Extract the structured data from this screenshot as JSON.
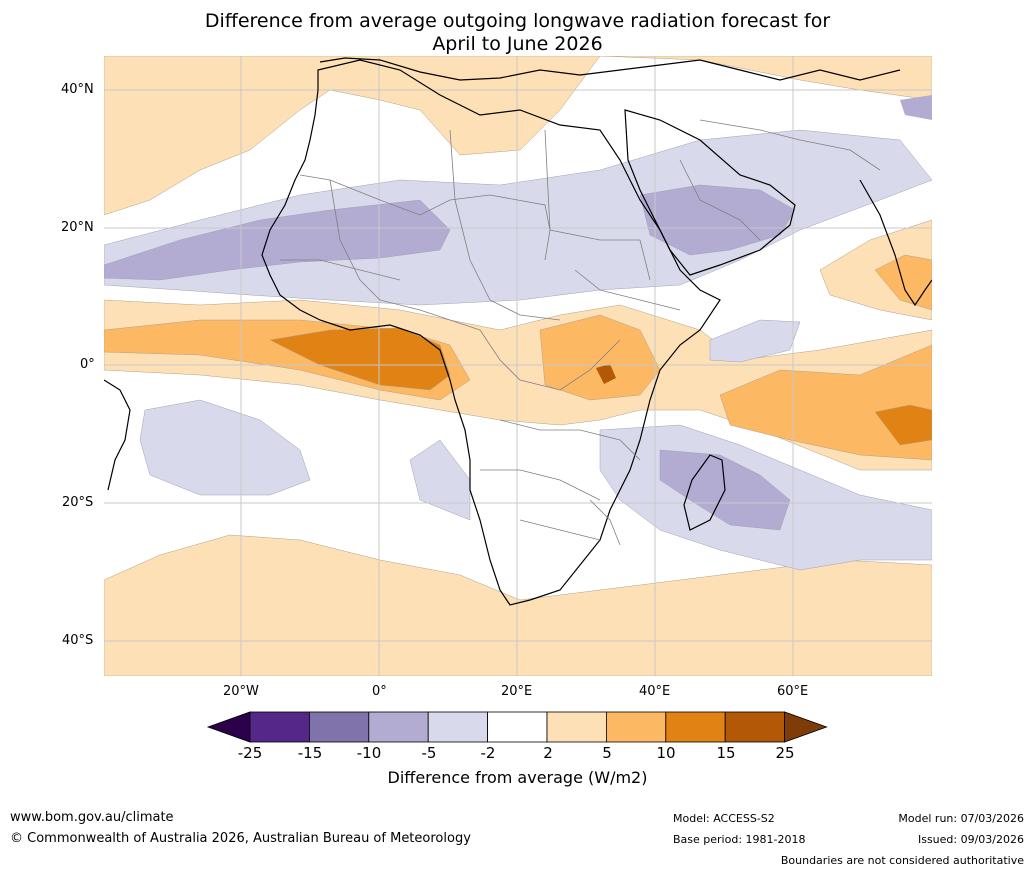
{
  "title_line1": "Difference from average outgoing longwave radiation forecast for",
  "title_line2": "April to June 2026",
  "lat_labels": [
    "40°N",
    "20°N",
    "0°",
    "20°S",
    "40°S"
  ],
  "lon_labels": [
    "20°W",
    "0°",
    "20°E",
    "40°E",
    "60°E"
  ],
  "legend": {
    "ticks": [
      "-25",
      "-15",
      "-10",
      "-5",
      "-2",
      "2",
      "5",
      "10",
      "15",
      "25"
    ],
    "colors": [
      "#2d004b",
      "#542788",
      "#8073ac",
      "#b2abd2",
      "#d8daeb",
      "#ffffff",
      "#fee0b6",
      "#fdb863",
      "#e08214",
      "#b35806",
      "#7f3b08"
    ],
    "title": "Difference from average (W/m2)"
  },
  "footer": {
    "url": "www.bom.gov.au/climate",
    "copyright": "© Commonwealth of Australia 2026, Australian Bureau of Meteorology",
    "model": "Model: ACCESS-S2",
    "base_period": "Base period: 1981-2018",
    "model_run": "Model run: 07/03/2026",
    "issued": "Issued: 09/03/2026",
    "disclaimer": "Boundaries are not considered authoritative"
  }
}
